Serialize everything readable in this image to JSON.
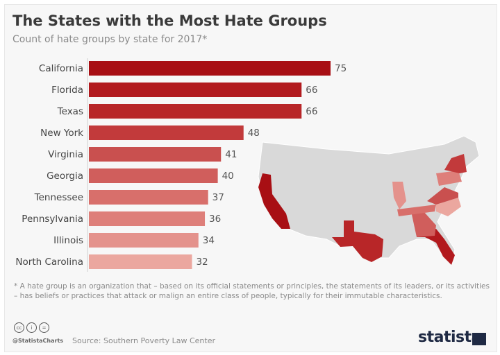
{
  "chart_data": {
    "type": "bar",
    "orientation": "horizontal",
    "title": "The States with the Most Hate Groups",
    "subtitle": "Count of hate groups by state for 2017*",
    "categories": [
      "California",
      "Florida",
      "Texas",
      "New York",
      "Virginia",
      "Georgia",
      "Tennessee",
      "Pennsylvania",
      "Illinois",
      "North Carolina"
    ],
    "values": [
      75,
      66,
      66,
      48,
      41,
      40,
      37,
      36,
      34,
      32
    ],
    "colors": [
      "#a80f14",
      "#b21a1e",
      "#b82628",
      "#c23a3b",
      "#c9504f",
      "#d05e5c",
      "#d86f6b",
      "#de7f7a",
      "#e4928c",
      "#eba79f"
    ],
    "xlim": [
      0,
      75
    ],
    "grid": false,
    "data_labels": true
  },
  "map": {
    "highlight_states": [
      "California",
      "Florida",
      "Texas",
      "New York",
      "Virginia",
      "Georgia",
      "Tennessee",
      "Pennsylvania",
      "Illinois",
      "North Carolina"
    ],
    "base_color": "#d9d9d9"
  },
  "footnote": "* A hate group is an organization that – based on its official statements or principles, the statements of its leaders, or its activities – has beliefs or practices that attack or malign an entire class of people, typically for their immutable characteristics.",
  "footer": {
    "license_icons": [
      "cc",
      "by",
      "nd"
    ],
    "license_text": [
      "cc",
      "i",
      "="
    ],
    "handle": "@StatistaCharts",
    "source": "Source: Southern Poverty Law Center",
    "logo": "statista"
  }
}
